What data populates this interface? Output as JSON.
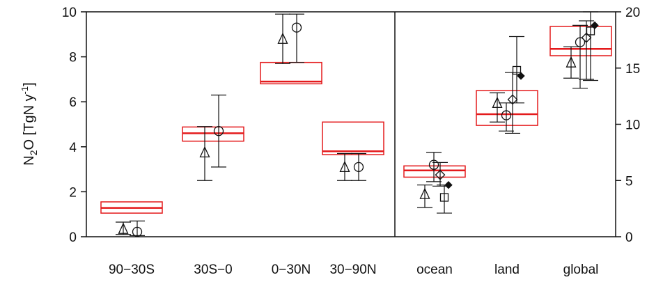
{
  "chart_data": {
    "type": "boxplot",
    "ylabel": {
      "base": "N",
      "sub": "2",
      "mid": "O [TgN y",
      "sup": "-1",
      "end": "]"
    },
    "left_axis": {
      "ylim": [
        0,
        10
      ],
      "ticks": [
        "0",
        "2",
        "4",
        "6",
        "8",
        "10"
      ]
    },
    "right_axis": {
      "ylim": [
        0,
        20
      ],
      "ticks": [
        "0",
        "5",
        "10",
        "15",
        "20"
      ]
    },
    "grid": false,
    "legend": "none",
    "colors": {
      "box": "#e41a1c",
      "marker": "#111111"
    },
    "categories": [
      "90−30S",
      "30S−0",
      "0−30N",
      "30−90N",
      "ocean",
      "land",
      "global"
    ],
    "groups": [
      {
        "category": "90−30S",
        "axis": "left",
        "box": {
          "low": 1.05,
          "median": 1.28,
          "high": 1.55
        },
        "markers": [
          {
            "symbol": "triangle",
            "value": 0.35,
            "err": [
              0.1,
              0.65
            ]
          },
          {
            "symbol": "circle",
            "value": 0.22,
            "err": [
              0.05,
              0.7
            ]
          }
        ]
      },
      {
        "category": "30S−0",
        "axis": "left",
        "box": {
          "low": 4.25,
          "median": 4.6,
          "high": 4.88
        },
        "markers": [
          {
            "symbol": "triangle",
            "value": 3.75,
            "err": [
              2.5,
              4.9
            ]
          },
          {
            "symbol": "circle",
            "value": 4.7,
            "err": [
              3.1,
              6.3
            ]
          }
        ]
      },
      {
        "category": "0−30N",
        "axis": "left",
        "box": {
          "low": 6.8,
          "median": 6.9,
          "high": 7.75
        },
        "markers": [
          {
            "symbol": "triangle",
            "value": 8.8,
            "err": [
              7.7,
              9.9
            ]
          },
          {
            "symbol": "circle",
            "value": 9.3,
            "err": [
              7.75,
              9.9
            ]
          }
        ]
      },
      {
        "category": "30−90N",
        "axis": "left",
        "box": {
          "low": 3.65,
          "median": 3.8,
          "high": 5.1
        },
        "markers": [
          {
            "symbol": "triangle",
            "value": 3.1,
            "err": [
              2.5,
              3.7
            ]
          },
          {
            "symbol": "circle",
            "value": 3.1,
            "err": [
              2.5,
              3.7
            ]
          }
        ]
      },
      {
        "category": "ocean",
        "axis": "right",
        "box": {
          "low": 5.3,
          "median": 5.9,
          "high": 6.3
        },
        "markers": [
          {
            "symbol": "triangle",
            "value": 3.8,
            "err": [
              2.6,
              4.6
            ]
          },
          {
            "symbol": "circle",
            "value": 6.4,
            "err": [
              4.9,
              7.5
            ]
          },
          {
            "symbol": "diamond",
            "value": 5.5,
            "err": [
              4.5,
              6.6
            ]
          },
          {
            "symbol": "square",
            "value": 3.5,
            "err": [
              2.1,
              4.6
            ]
          },
          {
            "symbol": "filled-diamond",
            "value": 4.6,
            "err": null
          }
        ]
      },
      {
        "category": "land",
        "axis": "right",
        "box": {
          "low": 9.9,
          "median": 10.9,
          "high": 13.0
        },
        "markers": [
          {
            "symbol": "triangle",
            "value": 11.9,
            "err": [
              10.2,
              12.8
            ]
          },
          {
            "symbol": "circle",
            "value": 10.8,
            "err": [
              9.4,
              11.9
            ]
          },
          {
            "symbol": "diamond",
            "value": 12.2,
            "err": [
              9.2,
              14.6
            ]
          },
          {
            "symbol": "square",
            "value": 14.8,
            "err": [
              11.9,
              17.8
            ]
          },
          {
            "symbol": "filled-diamond",
            "value": 14.3,
            "err": null
          }
        ]
      },
      {
        "category": "global",
        "axis": "right",
        "box": {
          "low": 16.1,
          "median": 16.7,
          "high": 18.7
        },
        "markers": [
          {
            "symbol": "triangle",
            "value": 15.5,
            "err": [
              14.1,
              16.9
            ]
          },
          {
            "symbol": "circle",
            "value": 17.3,
            "err": [
              13.2,
              18.8
            ]
          },
          {
            "symbol": "diamond",
            "value": 17.7,
            "err": [
              14.0,
              19.2
            ]
          },
          {
            "symbol": "square",
            "value": 18.3,
            "err": [
              13.9,
              20.0
            ]
          },
          {
            "symbol": "filled-diamond",
            "value": 18.8,
            "err": null
          }
        ]
      }
    ]
  }
}
